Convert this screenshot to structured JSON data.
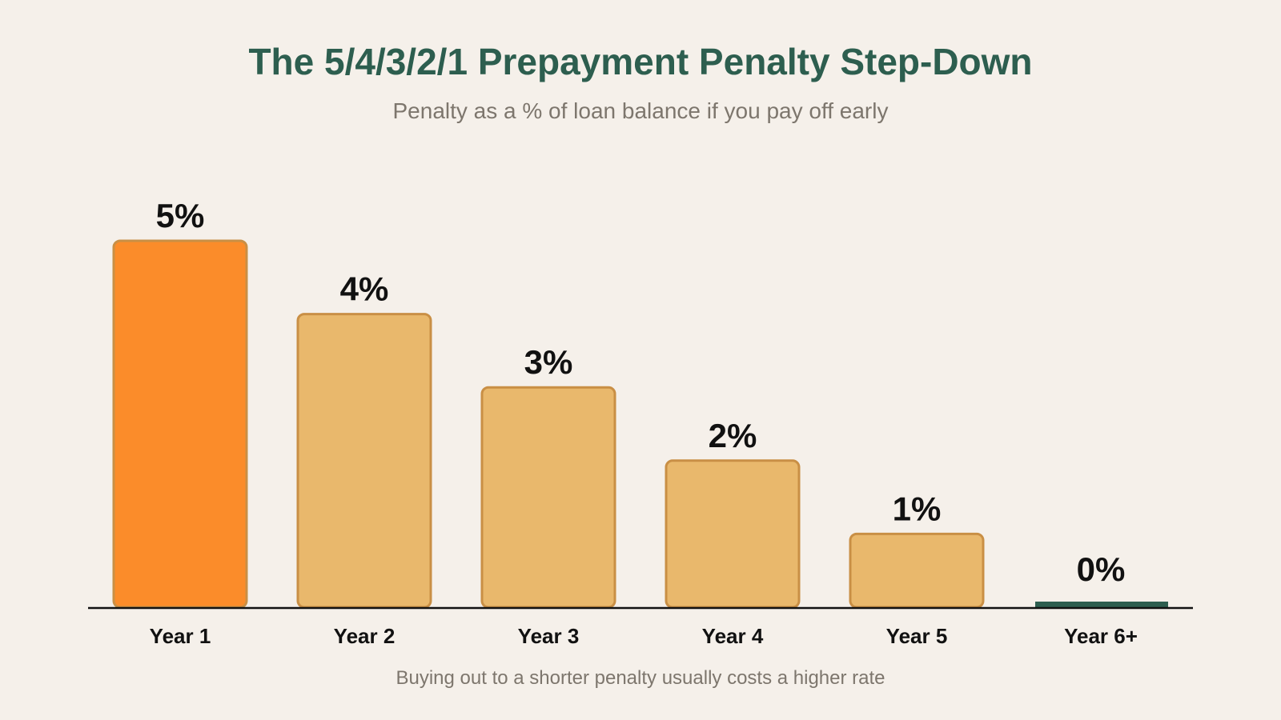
{
  "chart_data": {
    "type": "bar",
    "title": "The 5/4/3/2/1 Prepayment Penalty Step-Down",
    "subtitle": "Penalty as a % of loan balance if you pay off early",
    "footnote": "Buying out to a shorter penalty usually costs a higher rate",
    "xlabel": "",
    "ylabel": "",
    "categories": [
      "Year 1",
      "Year 2",
      "Year 3",
      "Year 4",
      "Year 5",
      "Year 6+"
    ],
    "values": [
      5,
      4,
      3,
      2,
      1,
      0
    ],
    "value_labels": [
      "5%",
      "4%",
      "3%",
      "2%",
      "1%",
      "0%"
    ],
    "ylim": [
      0,
      5
    ],
    "grid": false,
    "colors": {
      "highlight": "#fb8c2a",
      "bar": "#e9b86c",
      "bar_edge": "#c98f45",
      "zero": "#2d5e4f",
      "zero_label": "#2d5e4f",
      "label": "#111111",
      "title": "#2d5e4f",
      "subtitle": "#7d766d",
      "axis": "#111111",
      "background": "#f5f0ea"
    }
  }
}
